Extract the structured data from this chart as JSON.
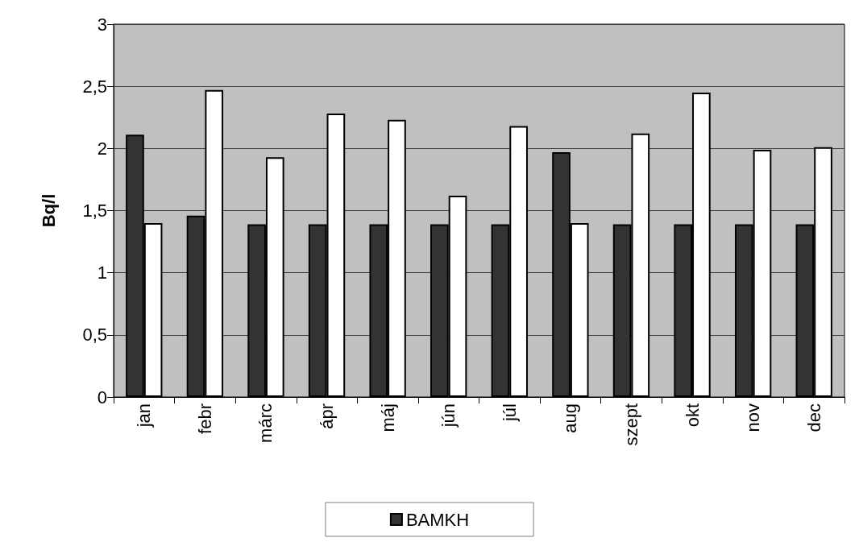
{
  "chart_data": {
    "type": "bar",
    "ylabel": "Bq/l",
    "categories": [
      "jan",
      "febr",
      "márc",
      "ápr",
      "máj",
      "jún",
      "júl",
      "aug",
      "szept",
      "okt",
      "nov",
      "dec"
    ],
    "series": [
      {
        "name": "BAMKH",
        "color": "#333333",
        "values": [
          2.11,
          1.46,
          1.39,
          1.39,
          1.39,
          1.39,
          1.39,
          1.97,
          1.39,
          1.39,
          1.39,
          1.39
        ]
      },
      {
        "color": "#ffffff",
        "values": [
          1.4,
          2.47,
          1.93,
          2.28,
          2.23,
          1.62,
          2.18,
          1.4,
          2.12,
          2.45,
          1.99,
          2.01
        ]
      }
    ],
    "ylim": [
      0,
      3
    ],
    "yticks": [
      0,
      {
        "value": 0.5,
        "label": "0,5"
      },
      1,
      {
        "value": 1.5,
        "label": "1,5"
      },
      2,
      {
        "value": 2.5,
        "label": "2,5"
      },
      3
    ],
    "grid": "y",
    "legend": "bottom"
  }
}
